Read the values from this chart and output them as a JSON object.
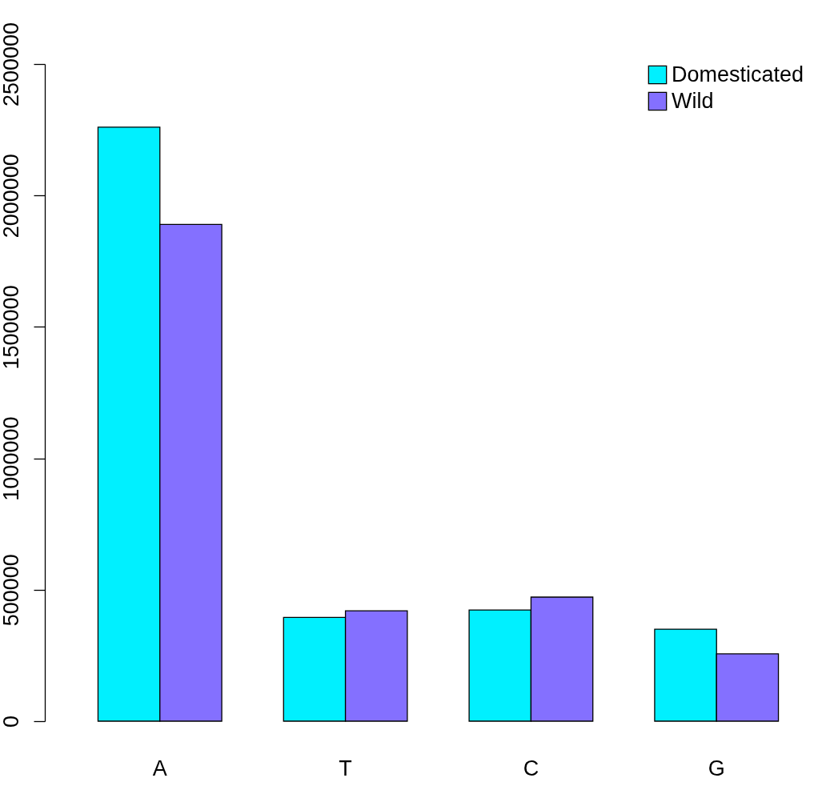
{
  "chart_data": {
    "type": "bar",
    "categories": [
      "A",
      "T",
      "C",
      "G"
    ],
    "series": [
      {
        "name": "Domesticated",
        "color": "#00f0ff",
        "values": [
          2260000,
          395000,
          423000,
          350000
        ]
      },
      {
        "name": "Wild",
        "color": "#8470ff",
        "values": [
          1890000,
          420000,
          472000,
          256000
        ]
      }
    ],
    "ylim": [
      0,
      2500000
    ],
    "yticks": [
      0,
      500000,
      1000000,
      1500000,
      2000000,
      2500000
    ],
    "grid": false,
    "legend": "top right"
  }
}
